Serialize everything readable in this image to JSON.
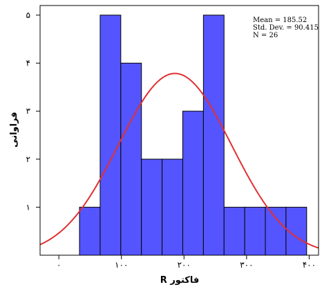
{
  "chart_data": {
    "type": "bar",
    "subtype": "histogram-with-normal-curve",
    "xlabel": "فاکتور R",
    "ylabel": "فراوانی",
    "xlim": [
      -30,
      415
    ],
    "ylim": [
      0,
      5.2
    ],
    "x_ticks": [
      0,
      100,
      200,
      300,
      400
    ],
    "x_tick_labels": [
      "۰",
      "۱۰۰",
      "۲۰۰",
      "۳۰۰",
      "۴۰۰"
    ],
    "y_ticks": [
      1,
      2,
      3,
      4,
      5
    ],
    "y_tick_labels": [
      "۱",
      "۲",
      "۳",
      "۴",
      "۵"
    ],
    "bins": [
      {
        "x0": 33,
        "x1": 66,
        "count": 1
      },
      {
        "x0": 66,
        "x1": 99,
        "count": 5
      },
      {
        "x0": 99,
        "x1": 132,
        "count": 4
      },
      {
        "x0": 132,
        "x1": 165,
        "count": 2
      },
      {
        "x0": 165,
        "x1": 198,
        "count": 2
      },
      {
        "x0": 198,
        "x1": 231,
        "count": 3
      },
      {
        "x0": 231,
        "x1": 264,
        "count": 5
      },
      {
        "x0": 264,
        "x1": 297,
        "count": 1
      },
      {
        "x0": 297,
        "x1": 330,
        "count": 1
      },
      {
        "x0": 330,
        "x1": 363,
        "count": 1
      },
      {
        "x0": 363,
        "x1": 396,
        "count": 1
      }
    ],
    "mean": 185.52,
    "std_dev": 90.415,
    "n": 26,
    "stats_lines": [
      "Mean = 185.52",
      "Std. Dev. = 90.415",
      "N = 26"
    ],
    "bar_color": "#5555ff",
    "bar_edge_color": "#000000",
    "curve_color": "#e03030",
    "grid": false,
    "legend": "top-right"
  }
}
